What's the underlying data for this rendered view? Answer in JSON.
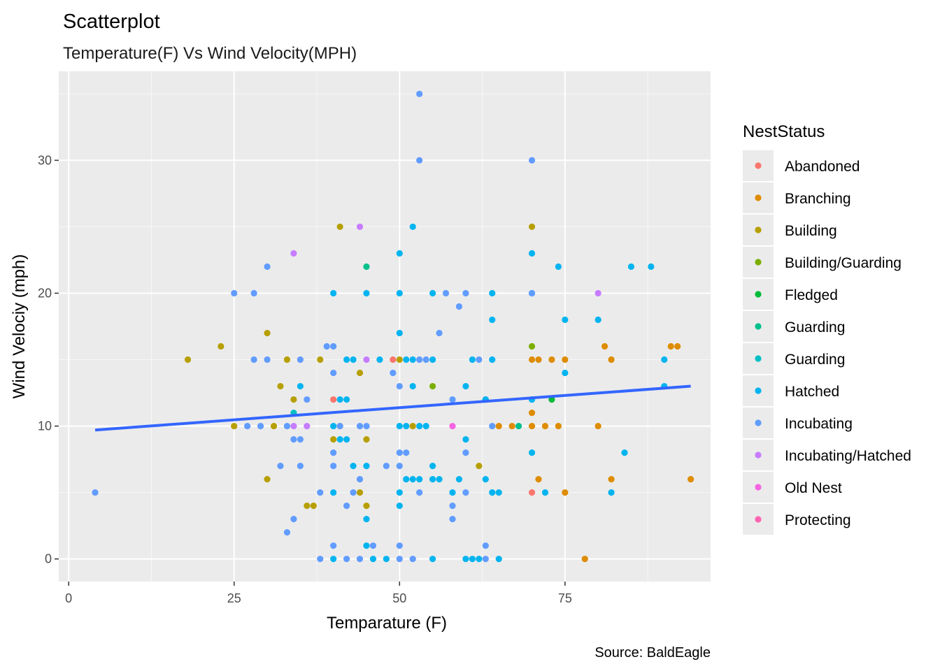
{
  "chart_data": {
    "type": "scatter",
    "title": "Scatterplot",
    "subtitle": "Temperature(F) Vs Wind Velocity(MPH)",
    "xlabel": "Temparature (F)",
    "ylabel": "Wind Velociy (mph)",
    "caption": "Source: BaldEagle",
    "xlim": [
      -1.5,
      97
    ],
    "ylim": [
      -1.7,
      36.7
    ],
    "x_ticks": [
      0,
      25,
      50,
      75
    ],
    "x_tick_labels": [
      "0",
      "25",
      "50",
      "75"
    ],
    "y_ticks": [
      0,
      10,
      20,
      30
    ],
    "y_tick_labels": [
      "0",
      "10",
      "20",
      "30"
    ],
    "grid": true,
    "legend": {
      "title": "NestStatus",
      "position": "right",
      "entries": [
        {
          "label": "Abandoned",
          "color": "#F8766D"
        },
        {
          "label": "Branching",
          "color": "#DE8C00"
        },
        {
          "label": "Building",
          "color": "#B79F00"
        },
        {
          "label": "Building/Guarding",
          "color": "#7CAE00"
        },
        {
          "label": "Fledged",
          "color": "#00BA38"
        },
        {
          "label": "Guarding",
          "color": "#00C08B"
        },
        {
          "label": "Guarding",
          "color": "#00BFC4"
        },
        {
          "label": "Hatched",
          "color": "#00B4F0"
        },
        {
          "label": "Incubating",
          "color": "#619CFF"
        },
        {
          "label": "Incubating/Hatched",
          "color": "#C77CFF"
        },
        {
          "label": "Old Nest",
          "color": "#F564E3"
        },
        {
          "label": "Protecting",
          "color": "#FF64B0"
        }
      ]
    },
    "trend_line": {
      "color": "#3366FF",
      "points": [
        [
          4,
          9.7
        ],
        [
          94,
          13.0
        ]
      ]
    },
    "series": [
      {
        "name": "Abandoned",
        "color": "#F8766D",
        "points": [
          [
            40,
            12
          ],
          [
            49,
            15
          ],
          [
            70,
            5
          ]
        ]
      },
      {
        "name": "Branching",
        "color": "#DE8C00",
        "points": [
          [
            65,
            10
          ],
          [
            67,
            10
          ],
          [
            70,
            15
          ],
          [
            70,
            11
          ],
          [
            70,
            10
          ],
          [
            71,
            15
          ],
          [
            71,
            6
          ],
          [
            72,
            10
          ],
          [
            73,
            15
          ],
          [
            74,
            10
          ],
          [
            75,
            15
          ],
          [
            75,
            5
          ],
          [
            78,
            0
          ],
          [
            80,
            10
          ],
          [
            81,
            16
          ],
          [
            82,
            15
          ],
          [
            82,
            6
          ],
          [
            91,
            16
          ],
          [
            92,
            16
          ],
          [
            94,
            6
          ]
        ]
      },
      {
        "name": "Building",
        "color": "#B79F00",
        "points": [
          [
            18,
            15
          ],
          [
            23,
            16
          ],
          [
            25,
            10
          ],
          [
            30,
            17
          ],
          [
            30,
            6
          ],
          [
            31,
            10
          ],
          [
            32,
            13
          ],
          [
            33,
            15
          ],
          [
            34,
            12
          ],
          [
            36,
            4
          ],
          [
            37,
            4
          ],
          [
            38,
            15
          ],
          [
            40,
            9
          ],
          [
            41,
            25
          ],
          [
            41,
            10
          ],
          [
            44,
            14
          ],
          [
            44,
            5
          ],
          [
            45,
            9
          ],
          [
            45,
            4
          ],
          [
            50,
            15
          ],
          [
            52,
            10
          ],
          [
            62,
            7
          ],
          [
            70,
            25
          ]
        ]
      },
      {
        "name": "Building/Guarding",
        "color": "#7CAE00",
        "points": [
          [
            55,
            13
          ],
          [
            70,
            16
          ]
        ]
      },
      {
        "name": "Fledged",
        "color": "#00BA38",
        "points": [
          [
            73,
            12
          ]
        ]
      },
      {
        "name": "Guarding",
        "color": "#00C08B",
        "points": [
          [
            45,
            22
          ],
          [
            68,
            10
          ]
        ]
      },
      {
        "name": "Guarding",
        "color": "#00BFC4",
        "points": [
          [
            34,
            11
          ],
          [
            63,
            12
          ],
          [
            70,
            12
          ]
        ]
      },
      {
        "name": "Hatched",
        "color": "#00B4F0",
        "points": [
          [
            35,
            13
          ],
          [
            40,
            20
          ],
          [
            40,
            10
          ],
          [
            40,
            5
          ],
          [
            40,
            0
          ],
          [
            41,
            12
          ],
          [
            41,
            9
          ],
          [
            42,
            12
          ],
          [
            42,
            9
          ],
          [
            42,
            15
          ],
          [
            43,
            15
          ],
          [
            43,
            7
          ],
          [
            45,
            20
          ],
          [
            45,
            7
          ],
          [
            45,
            3
          ],
          [
            45,
            1
          ],
          [
            46,
            0
          ],
          [
            47,
            15
          ],
          [
            48,
            0
          ],
          [
            50,
            23
          ],
          [
            50,
            20
          ],
          [
            50,
            17
          ],
          [
            50,
            10
          ],
          [
            50,
            5
          ],
          [
            50,
            4
          ],
          [
            51,
            10
          ],
          [
            51,
            6
          ],
          [
            51,
            15
          ],
          [
            52,
            25
          ],
          [
            52,
            15
          ],
          [
            52,
            13
          ],
          [
            52,
            6
          ],
          [
            53,
            10
          ],
          [
            53,
            6
          ],
          [
            54,
            10
          ],
          [
            55,
            20
          ],
          [
            55,
            15
          ],
          [
            55,
            7
          ],
          [
            55,
            6
          ],
          [
            55,
            0
          ],
          [
            56,
            6
          ],
          [
            58,
            5
          ],
          [
            59,
            6
          ],
          [
            60,
            13
          ],
          [
            60,
            9
          ],
          [
            60,
            0
          ],
          [
            61,
            15
          ],
          [
            61,
            0
          ],
          [
            62,
            0
          ],
          [
            63,
            12
          ],
          [
            63,
            6
          ],
          [
            64,
            20
          ],
          [
            64,
            18
          ],
          [
            64,
            15
          ],
          [
            64,
            5
          ],
          [
            65,
            5
          ],
          [
            65,
            0
          ],
          [
            70,
            23
          ],
          [
            70,
            20
          ],
          [
            70,
            12
          ],
          [
            70,
            8
          ],
          [
            72,
            5
          ],
          [
            74,
            22
          ],
          [
            75,
            18
          ],
          [
            75,
            14
          ],
          [
            80,
            18
          ],
          [
            82,
            5
          ],
          [
            84,
            8
          ],
          [
            85,
            22
          ],
          [
            88,
            22
          ],
          [
            90,
            15
          ],
          [
            90,
            13
          ]
        ]
      },
      {
        "name": "Incubating",
        "color": "#619CFF",
        "points": [
          [
            4,
            5
          ],
          [
            25,
            20
          ],
          [
            27,
            10
          ],
          [
            28,
            20
          ],
          [
            28,
            15
          ],
          [
            29,
            10
          ],
          [
            30,
            22
          ],
          [
            30,
            15
          ],
          [
            32,
            7
          ],
          [
            33,
            10
          ],
          [
            33,
            2
          ],
          [
            34,
            9
          ],
          [
            34,
            3
          ],
          [
            35,
            15
          ],
          [
            35,
            9
          ],
          [
            35,
            7
          ],
          [
            36,
            12
          ],
          [
            38,
            5
          ],
          [
            38,
            0
          ],
          [
            39,
            16
          ],
          [
            40,
            16
          ],
          [
            40,
            14
          ],
          [
            40,
            8
          ],
          [
            40,
            7
          ],
          [
            40,
            1
          ],
          [
            41,
            10
          ],
          [
            42,
            4
          ],
          [
            42,
            0
          ],
          [
            43,
            5
          ],
          [
            44,
            6
          ],
          [
            44,
            10
          ],
          [
            44,
            0
          ],
          [
            45,
            10
          ],
          [
            46,
            1
          ],
          [
            48,
            7
          ],
          [
            49,
            14
          ],
          [
            50,
            13
          ],
          [
            50,
            8
          ],
          [
            50,
            7
          ],
          [
            50,
            1
          ],
          [
            50,
            0
          ],
          [
            51,
            8
          ],
          [
            52,
            0
          ],
          [
            53,
            35
          ],
          [
            53,
            30
          ],
          [
            53,
            15
          ],
          [
            53,
            5
          ],
          [
            54,
            15
          ],
          [
            56,
            17
          ],
          [
            57,
            20
          ],
          [
            58,
            12
          ],
          [
            58,
            4
          ],
          [
            58,
            3
          ],
          [
            59,
            19
          ],
          [
            60,
            20
          ],
          [
            60,
            8
          ],
          [
            60,
            5
          ],
          [
            62,
            15
          ],
          [
            63,
            1
          ],
          [
            63,
            0
          ],
          [
            64,
            10
          ],
          [
            70,
            30
          ],
          [
            70,
            20
          ]
        ]
      },
      {
        "name": "Incubating/Hatched",
        "color": "#C77CFF",
        "points": [
          [
            34,
            23
          ],
          [
            34,
            10
          ],
          [
            36,
            10
          ],
          [
            44,
            25
          ],
          [
            45,
            15
          ],
          [
            80,
            20
          ]
        ]
      },
      {
        "name": "Old Nest",
        "color": "#F564E3",
        "points": [
          [
            58,
            10
          ]
        ]
      },
      {
        "name": "Protecting",
        "color": "#FF64B0",
        "points": []
      }
    ]
  }
}
